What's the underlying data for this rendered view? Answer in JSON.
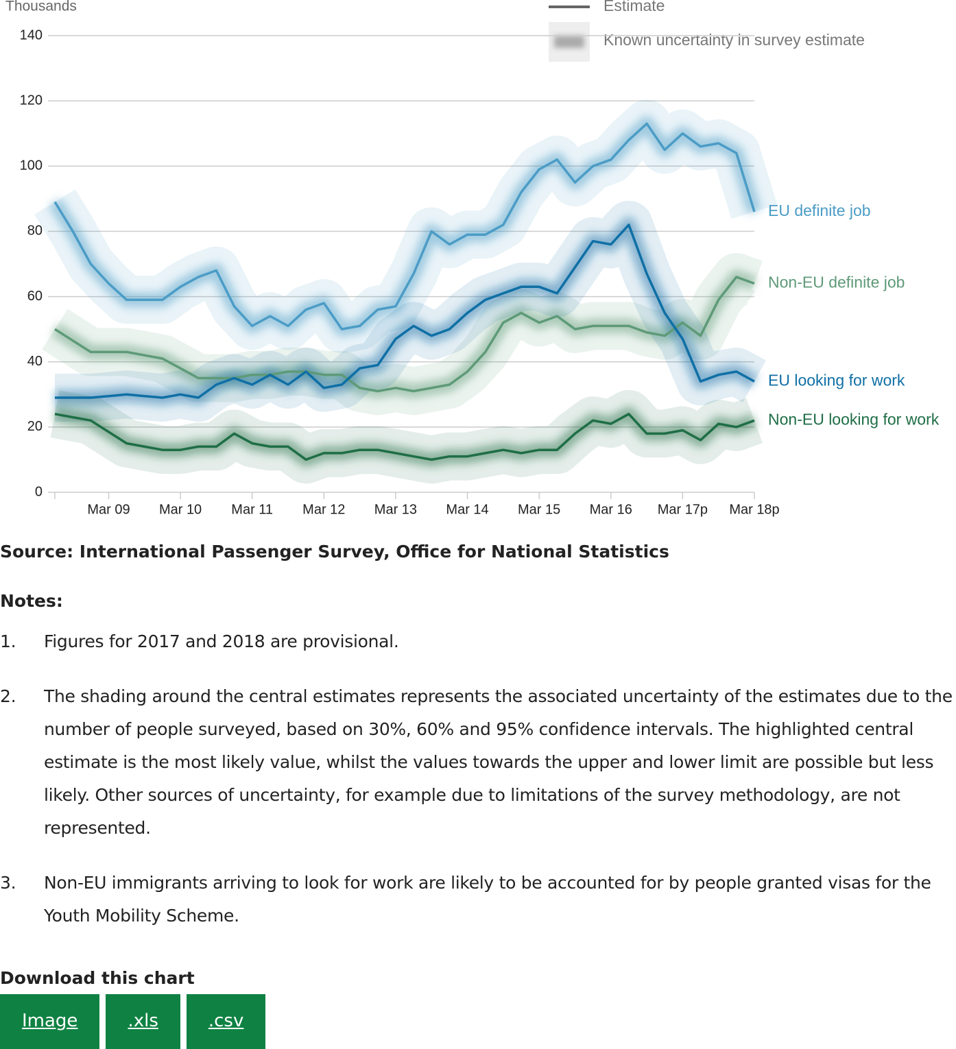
{
  "chart_data": {
    "type": "line",
    "y_label": "Thousands",
    "legend_items": [
      "Estimate",
      "Known uncertainty in survey estimate"
    ],
    "categories": [
      null,
      null,
      null,
      "Mar 09",
      null,
      null,
      null,
      "Mar 10",
      null,
      null,
      null,
      "Mar 11",
      null,
      null,
      null,
      "Mar 12",
      null,
      null,
      null,
      "Mar 13",
      null,
      null,
      null,
      "Mar 14",
      null,
      null,
      null,
      "Mar 15",
      null,
      null,
      null,
      "Mar 16",
      null,
      null,
      null,
      "Mar 17p",
      null,
      null,
      null,
      "Mar 18p"
    ],
    "ylim": [
      0,
      140
    ],
    "yticks": [
      0,
      20,
      40,
      60,
      80,
      100,
      120,
      140
    ],
    "grid": true,
    "series": [
      {
        "name": "EU definite job",
        "color": "#4b9cc6",
        "values": [
          89,
          80,
          70,
          64,
          59,
          59,
          59,
          63,
          66,
          68,
          57,
          51,
          54,
          51,
          56,
          58,
          50,
          51,
          56,
          57,
          67,
          80,
          76,
          79,
          79,
          82,
          92,
          99,
          102,
          95,
          100,
          102,
          108,
          113,
          105,
          110,
          106,
          107,
          104,
          86
        ]
      },
      {
        "name": "Non-EU definite job",
        "color": "#5e9a78",
        "values": [
          50,
          46.5,
          43,
          43,
          43,
          42,
          41,
          38,
          35,
          35,
          35,
          36,
          36,
          37,
          37,
          36,
          36,
          32,
          31,
          32,
          31,
          32,
          33,
          37,
          43,
          52,
          55,
          52,
          54,
          50,
          51,
          51,
          51,
          49,
          48,
          52,
          48,
          59,
          66,
          64
        ]
      },
      {
        "name": "EU looking for work",
        "color": "#0f6fa5",
        "values": [
          29,
          29,
          29,
          29.5,
          30,
          29.5,
          29,
          30,
          29,
          33,
          35,
          33,
          36,
          33,
          37,
          32,
          33,
          38,
          39,
          47,
          51,
          48,
          50,
          55,
          59,
          61,
          63,
          63,
          61,
          69,
          77,
          76,
          82,
          67,
          55,
          47,
          34,
          36,
          37,
          34
        ]
      },
      {
        "name": "Non-EU looking for work",
        "color": "#1e6e46",
        "values": [
          24,
          23,
          22,
          18.5,
          15,
          14,
          13,
          13,
          14,
          14,
          18,
          15,
          14,
          14,
          10,
          12,
          12,
          13,
          13,
          12,
          11,
          10,
          11,
          11,
          12,
          13,
          12,
          13,
          13,
          18,
          22,
          21,
          24,
          18,
          18,
          19,
          16,
          21,
          20,
          22
        ]
      }
    ]
  },
  "source": "Source: International Passenger Survey, Office for National Statistics",
  "notes_title": "Notes:",
  "notes": [
    {
      "number": "1.",
      "text": "Figures for 2017 and 2018 are provisional."
    },
    {
      "number": "2.",
      "text": "The shading around the central estimates represents the associated uncertainty of the estimates due to the number of people surveyed, based on 30%, 60% and 95% confidence intervals. The highlighted central estimate is the most likely value, whilst the values towards the upper and lower limit are possible but less likely. Other sources of uncertainty, for example due to limitations of the survey methodology, are not represented."
    },
    {
      "number": "3.",
      "text": "Non-EU immigrants arriving to look for work are likely to be accounted for by people granted visas for the Youth Mobility Scheme."
    }
  ],
  "download_title": "Download this chart",
  "buttons": [
    "Image",
    ".xls",
    ".csv"
  ]
}
